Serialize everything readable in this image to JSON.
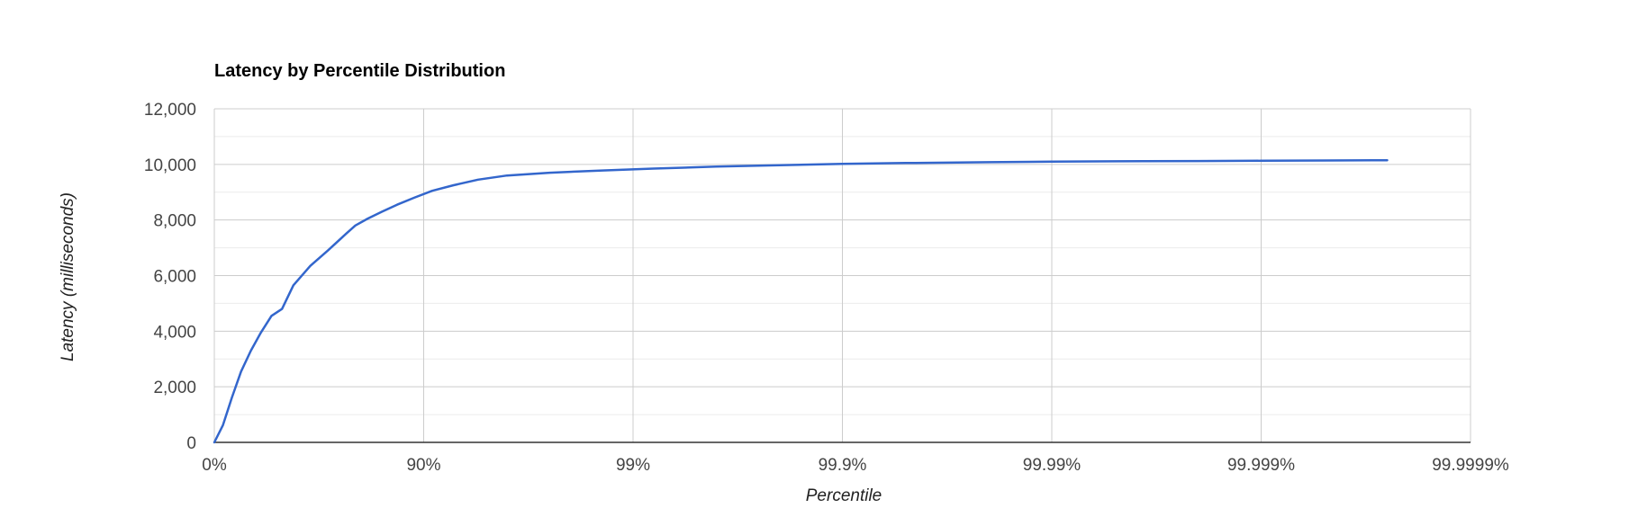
{
  "chart_data": {
    "type": "line",
    "title": "Latency by Percentile Distribution",
    "xlabel": "Percentile",
    "ylabel": "Latency (milliseconds)",
    "x_scale": "log-inverse (1 / (1 - percentile))",
    "x_ticks": [
      "0%",
      "90%",
      "99%",
      "99.9%",
      "99.99%",
      "99.999%",
      "99.9999%"
    ],
    "y_ticks": [
      "0",
      "2,000",
      "4,000",
      "6,000",
      "8,000",
      "10,000",
      "12,000"
    ],
    "ylim": [
      0,
      12000
    ],
    "xlim_percentile": [
      0,
      99.9999
    ],
    "grid": true,
    "legend": "none",
    "series": [
      {
        "color": "#3366cc",
        "points": [
          {
            "p": 0,
            "y": 0
          },
          {
            "p": 9.1,
            "y": 620
          },
          {
            "p": 17.5,
            "y": 1600
          },
          {
            "p": 25.5,
            "y": 2550
          },
          {
            "p": 33.1,
            "y": 3300
          },
          {
            "p": 40.1,
            "y": 3950
          },
          {
            "p": 46.7,
            "y": 4550
          },
          {
            "p": 52.5,
            "y": 4800
          },
          {
            "p": 58.1,
            "y": 5650
          },
          {
            "p": 65.2,
            "y": 6350
          },
          {
            "p": 71.3,
            "y": 6900
          },
          {
            "p": 76.5,
            "y": 7500
          },
          {
            "p": 78.8,
            "y": 7800
          },
          {
            "p": 81.5,
            "y": 8050
          },
          {
            "p": 84.2,
            "y": 8300
          },
          {
            "p": 86.6,
            "y": 8550
          },
          {
            "p": 88.9,
            "y": 8800
          },
          {
            "p": 90.9,
            "y": 9050
          },
          {
            "p": 92.8,
            "y": 9250
          },
          {
            "p": 94.5,
            "y": 9450
          },
          {
            "p": 96.0,
            "y": 9600
          },
          {
            "p": 97.5,
            "y": 9700
          },
          {
            "p": 98.6,
            "y": 9780
          },
          {
            "p": 99.2,
            "y": 9850
          },
          {
            "p": 99.6,
            "y": 9920
          },
          {
            "p": 99.8,
            "y": 9970
          },
          {
            "p": 99.9,
            "y": 10020
          },
          {
            "p": 99.95,
            "y": 10050
          },
          {
            "p": 99.98,
            "y": 10080
          },
          {
            "p": 99.99,
            "y": 10100
          },
          {
            "p": 99.995,
            "y": 10110
          },
          {
            "p": 99.998,
            "y": 10120
          },
          {
            "p": 99.999,
            "y": 10130
          },
          {
            "p": 99.9995,
            "y": 10140
          },
          {
            "p": 99.99975,
            "y": 10150
          }
        ]
      }
    ]
  }
}
